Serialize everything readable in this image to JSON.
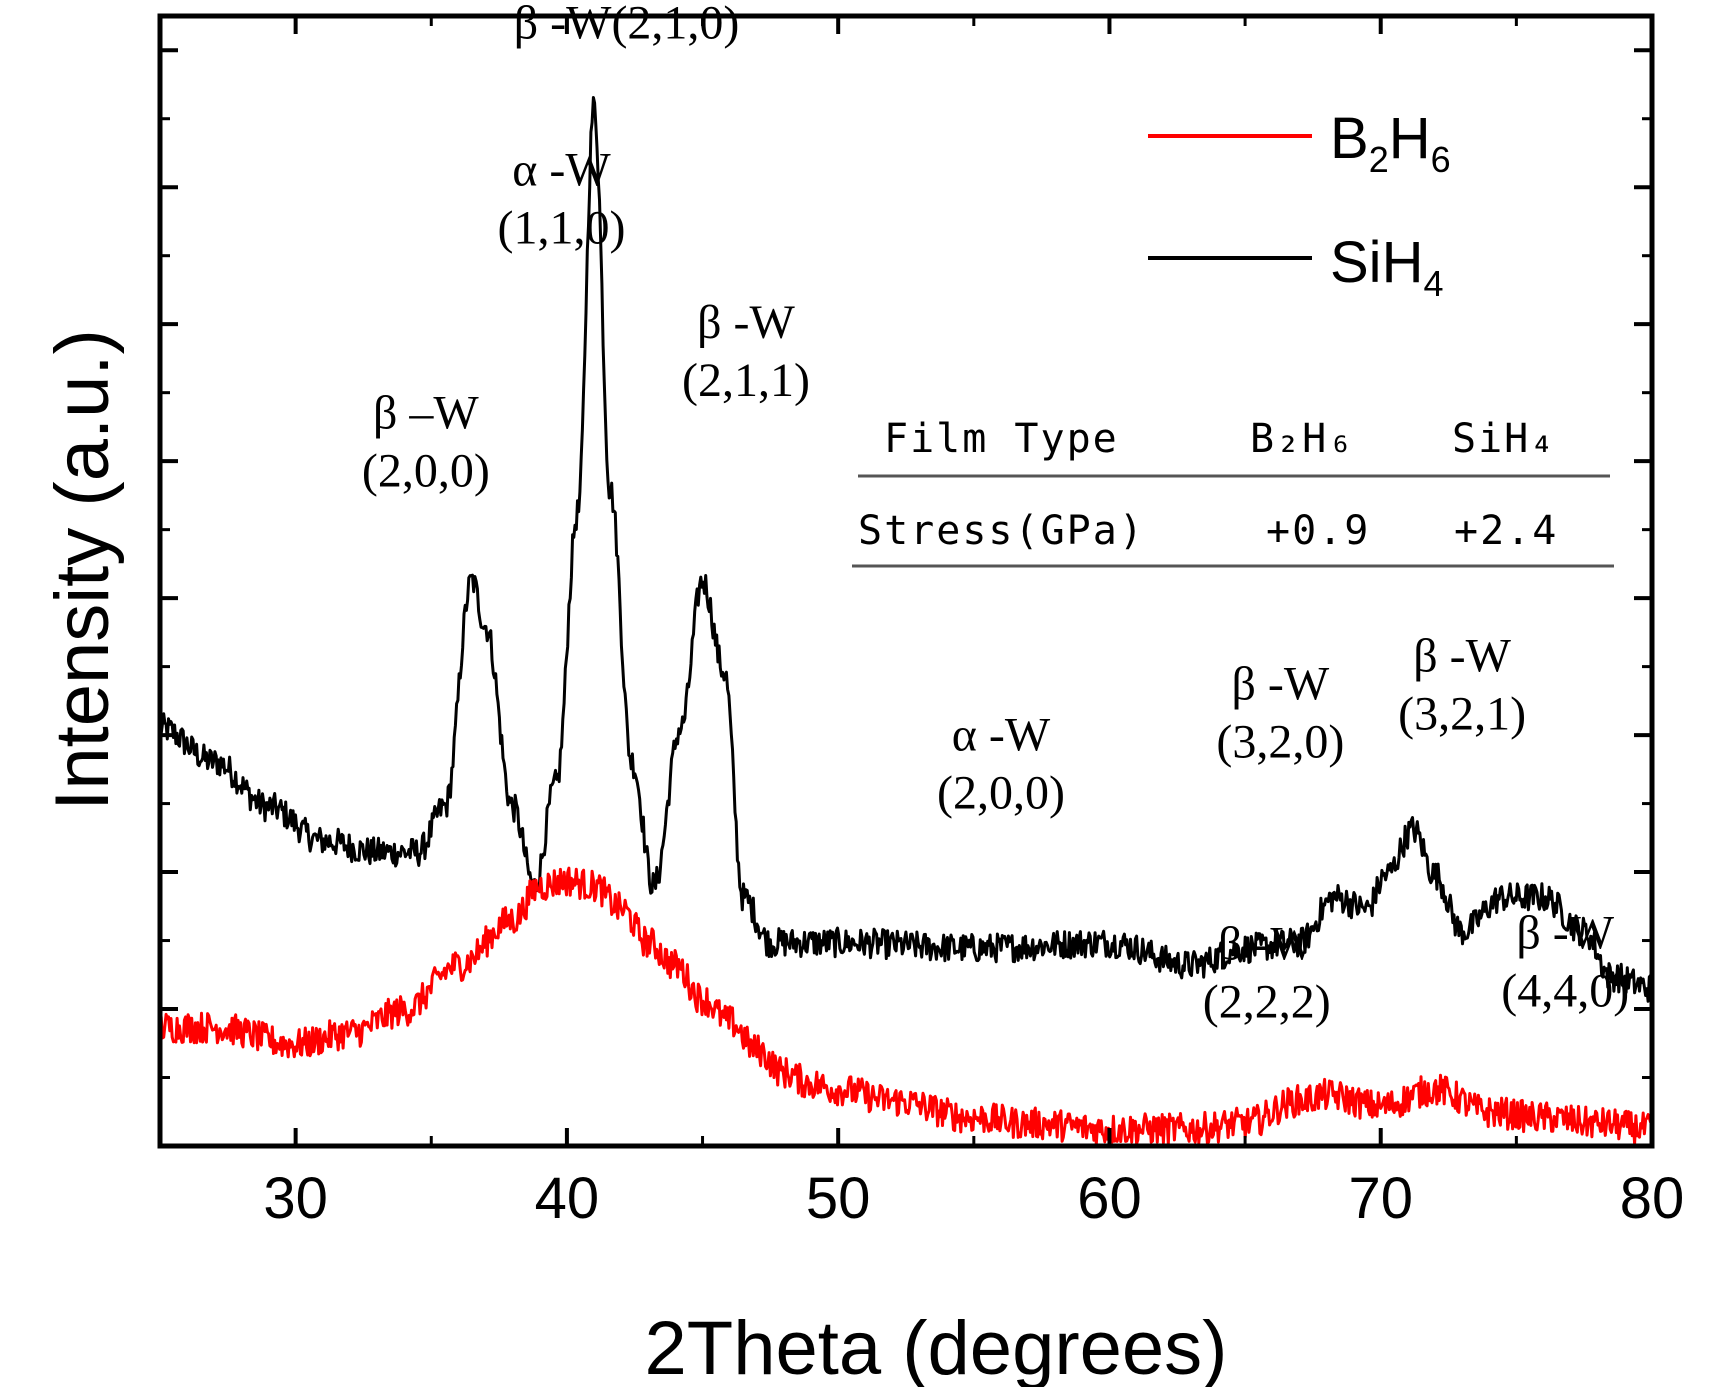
{
  "chart_data": {
    "type": "line",
    "title": "",
    "xlabel": "2Theta (degrees)",
    "ylabel": "Intensity (a.u.)",
    "xlim": [
      25,
      80
    ],
    "ylim": [
      0,
      100
    ],
    "x_ticks": [
      30,
      40,
      50,
      60,
      70,
      80
    ],
    "y_tick_labels_shown": false,
    "grid": false,
    "legend_position": "top-right",
    "legend": [
      {
        "label": "B",
        "sub": "2",
        "label2": "H",
        "sub2": "6",
        "color": "#ff0000"
      },
      {
        "label": "SiH",
        "sub": "4",
        "label2": "",
        "sub2": "",
        "color": "#000000"
      }
    ],
    "series": [
      {
        "name": "SiH4",
        "color": "#000000",
        "noise": 1.3,
        "x": [
          25,
          27,
          29,
          31,
          33,
          34.5,
          35.5,
          36.5,
          37,
          38,
          38.8,
          39.6,
          40.4,
          41,
          41.6,
          42.4,
          43.2,
          44.2,
          45,
          45.8,
          46.5,
          47.5,
          50,
          55,
          60,
          63,
          65,
          67,
          68.3,
          69.5,
          70.2,
          71.2,
          72,
          73,
          74.5,
          76,
          77.5,
          78.5,
          80
        ],
        "y": [
          37,
          34,
          30,
          27,
          26,
          26,
          30,
          50,
          46,
          30,
          23,
          32,
          56,
          92,
          58,
          34,
          23,
          37,
          50,
          42,
          22,
          18,
          18,
          17.5,
          18,
          16,
          17.5,
          18,
          22,
          21,
          24,
          28,
          24,
          19,
          22,
          22,
          19,
          15,
          14
        ]
      },
      {
        "name": "B2H6",
        "color": "#ff0000",
        "noise": 1.4,
        "x": [
          25,
          27,
          30,
          32,
          34,
          36,
          38,
          39,
          40,
          41,
          42,
          43,
          44,
          45,
          46,
          47,
          48,
          49,
          50,
          52,
          55,
          57,
          60,
          63,
          65,
          67,
          68,
          70,
          72,
          74,
          76,
          78,
          80
        ],
        "y": [
          10.5,
          10.5,
          9,
          10,
          12,
          16,
          20,
          23,
          23.5,
          23,
          21,
          18,
          16,
          13,
          11,
          8.5,
          6.5,
          5.5,
          5,
          4,
          2.5,
          2,
          1.5,
          1.5,
          2,
          4,
          4.5,
          3.5,
          5,
          3,
          2.5,
          2,
          1.5
        ]
      }
    ],
    "annotations": [
      {
        "x": 34.8,
        "y": 63.5,
        "lines": [
          "β –W",
          "(2,0,0)"
        ]
      },
      {
        "x": 39.8,
        "y": 85,
        "lines": [
          "α -W",
          "(1,1,0)"
        ]
      },
      {
        "x": 42.2,
        "y": 98,
        "lines": [
          "β -W(2,1,0)"
        ]
      },
      {
        "x": 46.6,
        "y": 71.5,
        "lines": [
          "β -W",
          "(2,1,1)"
        ]
      },
      {
        "x": 56,
        "y": 35,
        "lines": [
          "α -W",
          "(2,0,0)"
        ]
      },
      {
        "x": 66.3,
        "y": 39.5,
        "lines": [
          "β -W",
          "(3,2,0)"
        ]
      },
      {
        "x": 73,
        "y": 42,
        "lines": [
          "β -W",
          "(3,2,1)"
        ]
      },
      {
        "x": 65.8,
        "y": 16.5,
        "lines": [
          "β -W",
          "(2,2,2)"
        ]
      },
      {
        "x": 76.8,
        "y": 17.5,
        "lines": [
          "β -W",
          "(4,4,0)"
        ]
      }
    ],
    "table": {
      "header": [
        "Film Type",
        "B₂H₆",
        "SiH₄"
      ],
      "rows": [
        [
          "Stress(GPa)",
          "+0.9",
          "+2.4"
        ]
      ]
    }
  }
}
